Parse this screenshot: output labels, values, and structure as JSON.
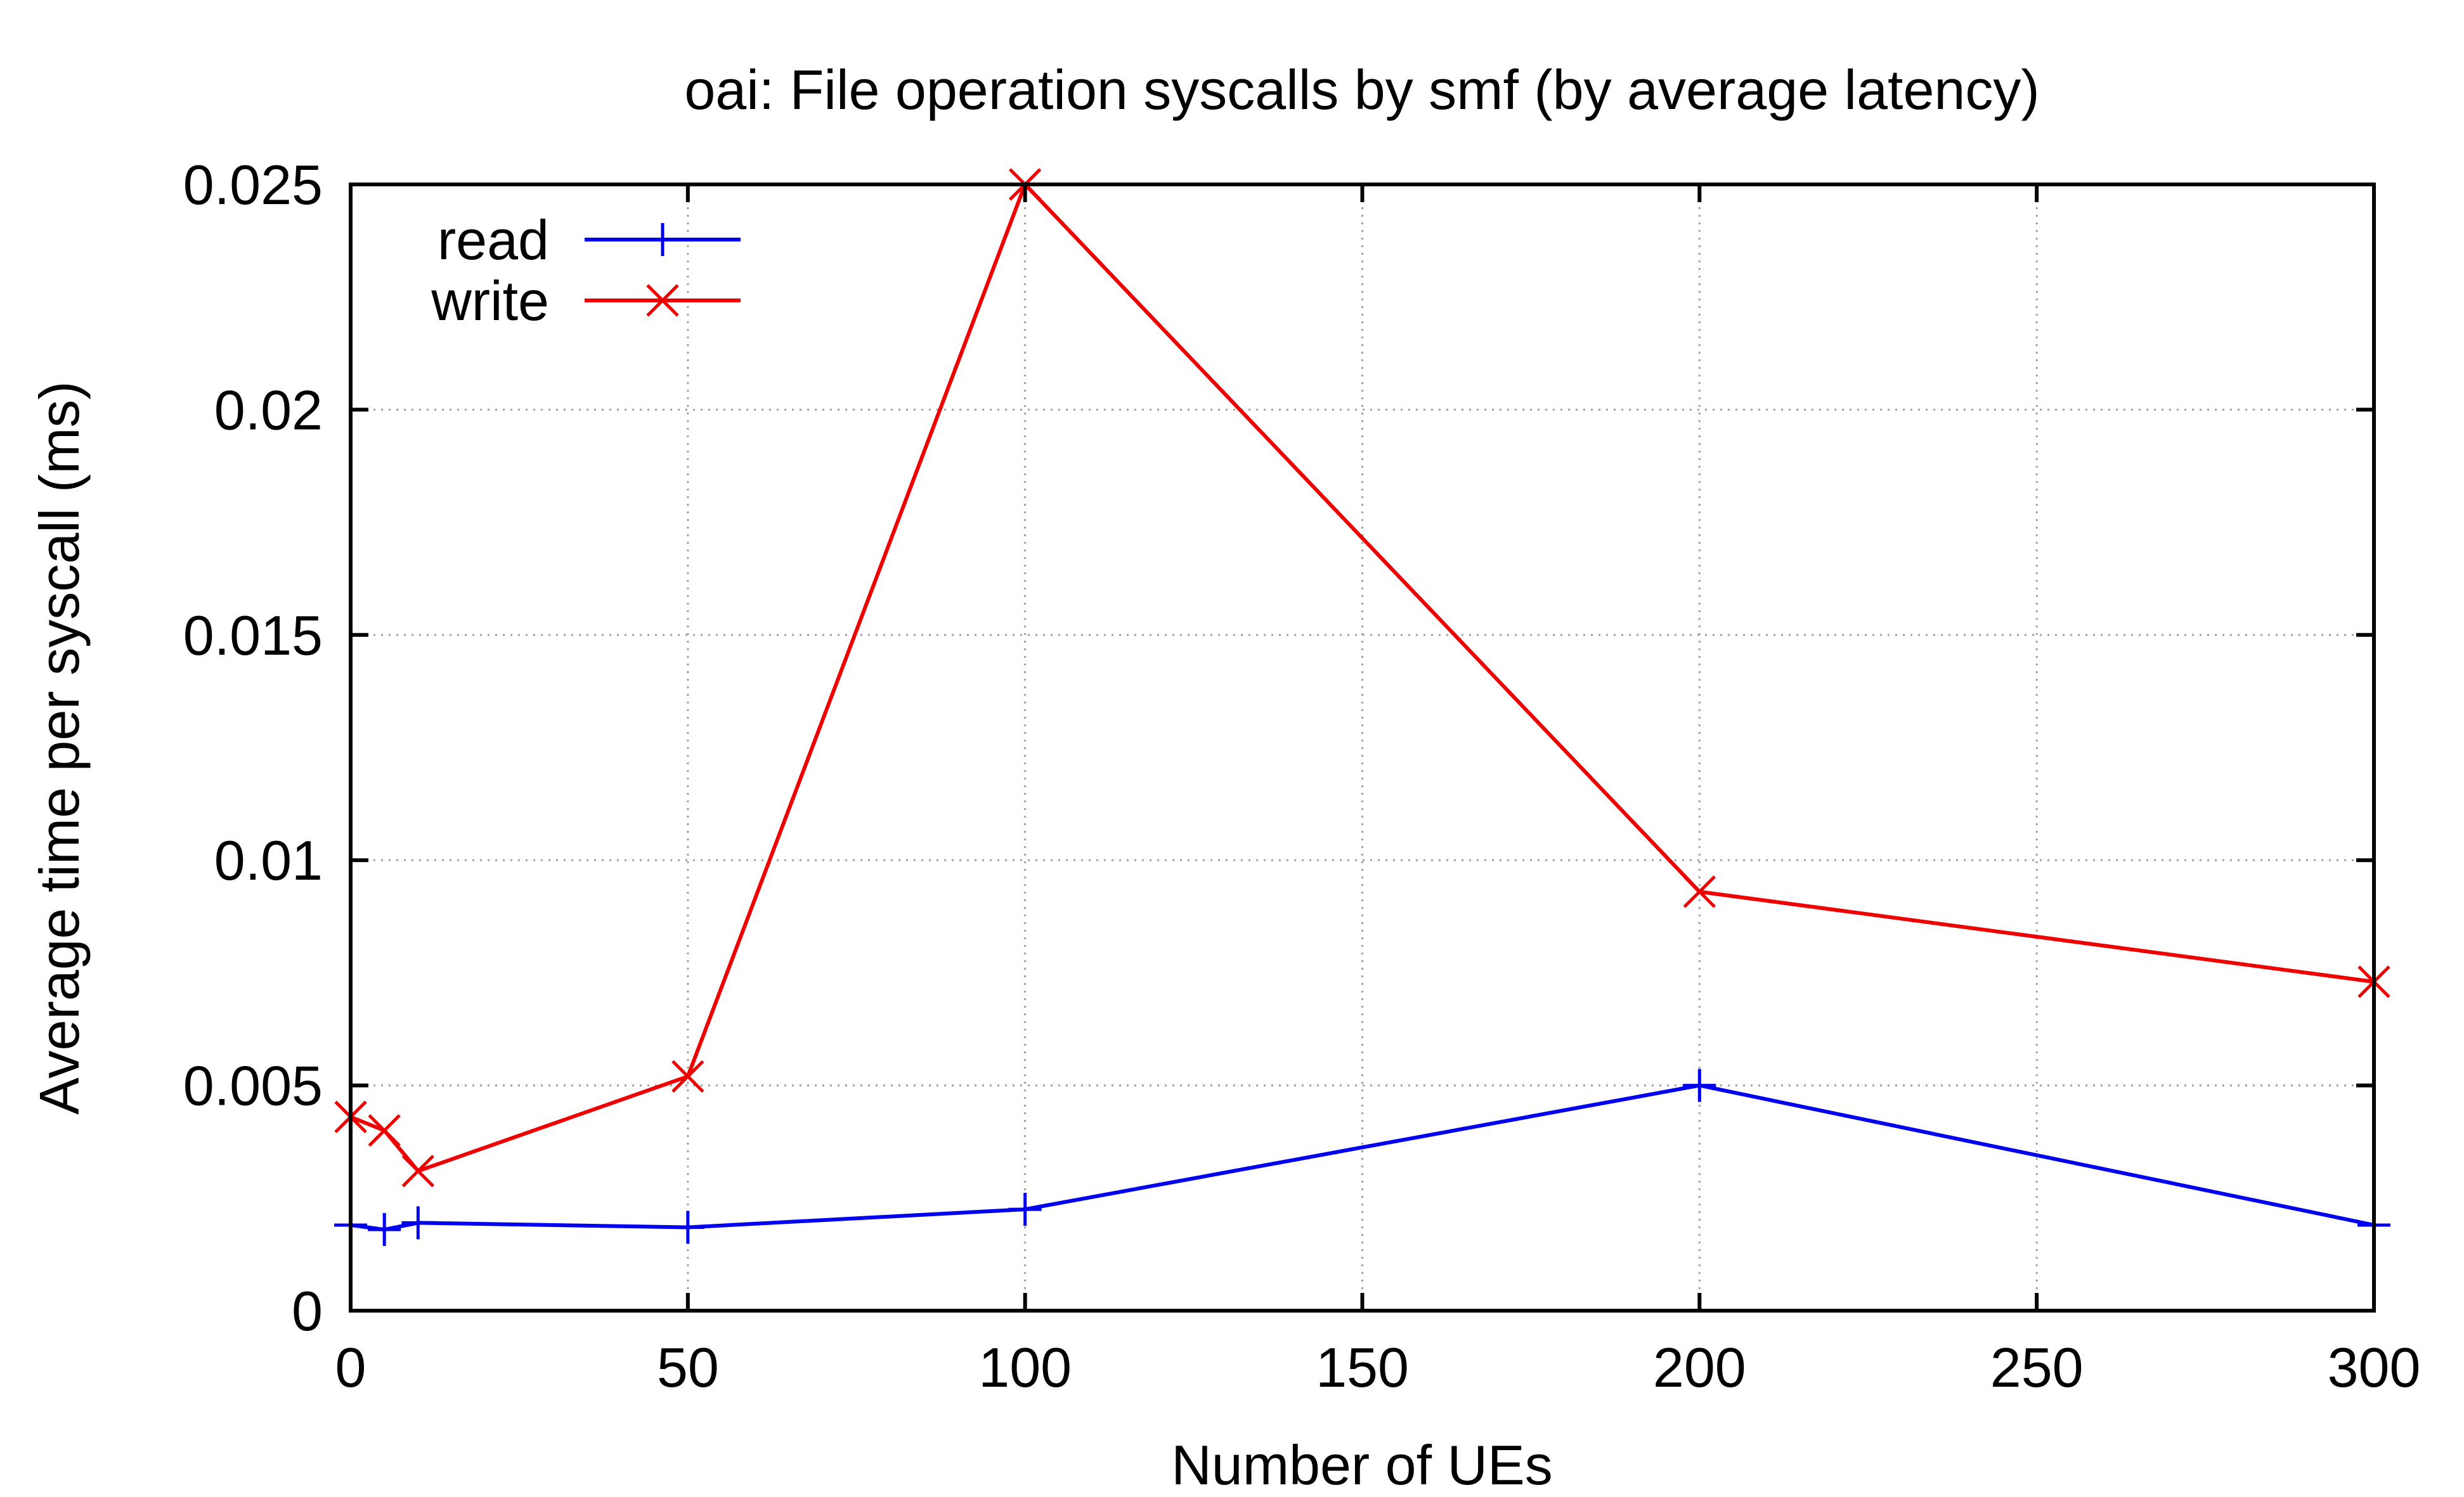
{
  "chart_data": {
    "type": "line",
    "title": "oai: File operation syscalls by smf (by average latency)",
    "xlabel": "Number of UEs",
    "ylabel": "Average time per syscall (ms)",
    "xlim": [
      0,
      300
    ],
    "ylim": [
      0,
      0.025
    ],
    "xticks": [
      0,
      50,
      100,
      150,
      200,
      250,
      300
    ],
    "xtick_labels": [
      "0",
      "50",
      "100",
      "150",
      "200",
      "250",
      "300"
    ],
    "yticks": [
      0,
      0.005,
      0.01,
      0.015,
      0.02,
      0.025
    ],
    "ytick_labels": [
      "0",
      "0.005",
      "0.01",
      "0.015",
      "0.02",
      "0.025"
    ],
    "grid": true,
    "legend_position": "top-left",
    "series": [
      {
        "name": "read",
        "color": "#0000ee",
        "marker": "plus",
        "x": [
          0,
          5,
          10,
          50,
          100,
          200,
          300
        ],
        "y": [
          0.0019,
          0.0018,
          0.00195,
          0.00185,
          0.00225,
          0.005,
          0.0019
        ]
      },
      {
        "name": "write",
        "color": "#ee0000",
        "marker": "cross",
        "x": [
          0,
          5,
          10,
          50,
          100,
          200,
          300
        ],
        "y": [
          0.0043,
          0.004,
          0.0031,
          0.0052,
          0.025,
          0.0093,
          0.0073
        ]
      }
    ]
  }
}
